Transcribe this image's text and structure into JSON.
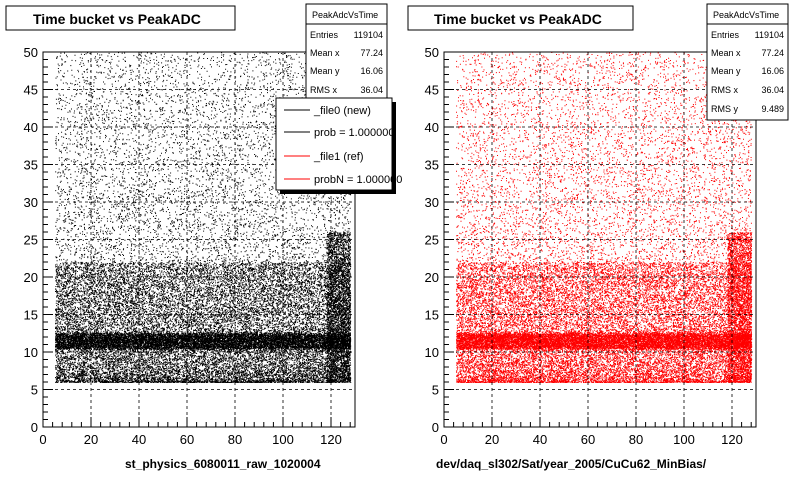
{
  "panels": [
    {
      "title": "Time bucket vs PeakADC",
      "caption": "st_physics_6080011_raw_1020004",
      "stats": {
        "name": "PeakAdcVsTime",
        "rows": [
          {
            "label": "Entries",
            "value": "119104"
          },
          {
            "label": "Mean x",
            "value": "77.24"
          },
          {
            "label": "Mean y",
            "value": "16.06"
          },
          {
            "label": "RMS x",
            "value": "36.04"
          }
        ]
      },
      "legend": [
        {
          "label": "_file0 (new)",
          "color": "#000000"
        },
        {
          "label": "prob = 1.000000",
          "color": "#000000"
        },
        {
          "label": "_file1 (ref)",
          "color": "#ff0000"
        },
        {
          "label": "probN = 1.000000",
          "color": "#ff0000"
        }
      ]
    },
    {
      "title": "Time bucket vs PeakADC",
      "caption": "dev/daq_sl302/Sat/year_2005/CuCu62_MinBias/",
      "stats": {
        "name": "PeakAdcVsTime",
        "rows": [
          {
            "label": "Entries",
            "value": "119104"
          },
          {
            "label": "Mean x",
            "value": "77.24"
          },
          {
            "label": "Mean y",
            "value": "16.06"
          },
          {
            "label": "RMS x",
            "value": "36.04"
          },
          {
            "label": "RMS y",
            "value": "9.489"
          }
        ]
      }
    }
  ],
  "chart_data": [
    {
      "type": "scatter",
      "color": "#000000",
      "xlim": [
        0,
        130
      ],
      "ylim": [
        0,
        50
      ],
      "xticks": [
        0,
        20,
        40,
        60,
        80,
        100,
        120
      ],
      "yticks": [
        0,
        5,
        10,
        15,
        20,
        25,
        30,
        35,
        40,
        45,
        50
      ],
      "x_range": [
        5,
        128
      ],
      "y_range": [
        6,
        50
      ],
      "dense_band_y": [
        10.5,
        12.5
      ],
      "grid": true
    },
    {
      "type": "scatter",
      "color": "#ff0000",
      "xlim": [
        0,
        130
      ],
      "ylim": [
        0,
        50
      ],
      "xticks": [
        0,
        20,
        40,
        60,
        80,
        100,
        120
      ],
      "yticks": [
        0,
        5,
        10,
        15,
        20,
        25,
        30,
        35,
        40,
        45,
        50
      ],
      "x_range": [
        5,
        128
      ],
      "y_range": [
        6,
        50
      ],
      "dense_band_y": [
        10.5,
        12.5
      ],
      "grid": true
    }
  ]
}
